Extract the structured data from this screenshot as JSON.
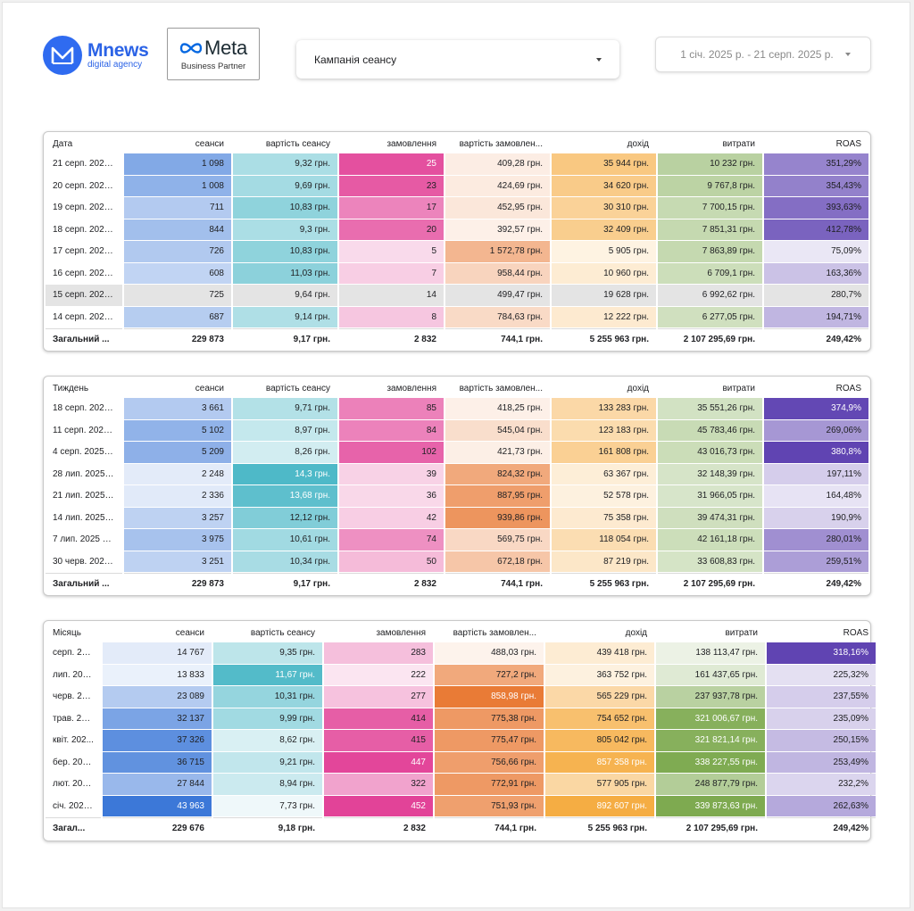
{
  "logo": {
    "name": "Mnews",
    "sub": "digital agency"
  },
  "partner": {
    "name": "Meta",
    "sub": "Business Partner"
  },
  "filters": {
    "campaign_label": "Кампанія сеансу",
    "date_range": "1 січ. 2025 р. - 21 серп. 2025 р."
  },
  "colors": {
    "sessions": "#3c78d8",
    "cost_session": "#45b5c5",
    "orders": "#e0338f",
    "cost_order": "#e8742c",
    "revenue": "#f5a93a",
    "spend": "#7aa84b",
    "roas": "#5b3fb0"
  },
  "columns": [
    "сеанси",
    "вартість сеансу",
    "замовлення",
    "вартість замовлен...",
    "дохід",
    "витрати",
    "ROAS"
  ],
  "tables": [
    {
      "dim_label": "Дата",
      "col_widths": [
        86,
        120,
        117,
        117,
        117,
        117,
        117,
        117
      ],
      "highlight_row": 6,
      "rows": [
        {
          "label": "21 серп. 2025 ...",
          "values": [
            "1 098",
            "9,32 грн.",
            "25",
            "409,28 грн.",
            "35 944 грн.",
            "10 232 грн.",
            "351,29%"
          ],
          "int": [
            0.62,
            0.42,
            0.85,
            0.08,
            0.62,
            0.5,
            0.62
          ]
        },
        {
          "label": "20 серп. 2025 ...",
          "values": [
            "1 008",
            "9,69 грн.",
            "23",
            "424,69 грн.",
            "34 620 грн.",
            "9 767,8 грн.",
            "354,43%"
          ],
          "int": [
            0.55,
            0.46,
            0.8,
            0.1,
            0.58,
            0.48,
            0.64
          ]
        },
        {
          "label": "19 серп. 2025 ...",
          "values": [
            "711",
            "10,83 грн.",
            "17",
            "452,95 грн.",
            "30 310 грн.",
            "7 700,15 грн.",
            "393,63%"
          ],
          "int": [
            0.36,
            0.58,
            0.58,
            0.13,
            0.5,
            0.4,
            0.74
          ]
        },
        {
          "label": "18 серп. 2025 ...",
          "values": [
            "844",
            "9,3 грн.",
            "20",
            "392,57 грн.",
            "32 409 грн.",
            "7 851,31 грн.",
            "412,78%"
          ],
          "int": [
            0.45,
            0.42,
            0.7,
            0.06,
            0.55,
            0.41,
            0.8
          ]
        },
        {
          "label": "17 серп. 2025 ...",
          "values": [
            "726",
            "10,83 грн.",
            "5",
            "1 572,78 грн.",
            "5 905 грн.",
            "7 863,89 грн.",
            "75,09%"
          ],
          "int": [
            0.37,
            0.58,
            0.14,
            0.5,
            0.1,
            0.41,
            0.08
          ]
        },
        {
          "label": "16 серп. 2025 ...",
          "values": [
            "608",
            "11,03 грн.",
            "7",
            "958,44 грн.",
            "10 960 грн.",
            "6 709,1 грн.",
            "163,36%"
          ],
          "int": [
            0.28,
            0.6,
            0.2,
            0.27,
            0.18,
            0.35,
            0.28
          ]
        },
        {
          "label": "15 серп. 2025 ...",
          "values": [
            "725",
            "9,64 грн.",
            "14",
            "499,47 грн.",
            "19 628 грн.",
            "6 992,62 грн.",
            "280,7%"
          ],
          "int": [
            0.37,
            0.46,
            0.45,
            0.15,
            0.33,
            0.36,
            0.5
          ]
        },
        {
          "label": "14 серп. 2025 ...",
          "values": [
            "687",
            "9,14 грн.",
            "8",
            "784,63 грн.",
            "12 222 грн.",
            "6 277,05 грн.",
            "194,71%"
          ],
          "int": [
            0.34,
            0.4,
            0.24,
            0.23,
            0.2,
            0.32,
            0.35
          ]
        }
      ],
      "total": {
        "label": "Загальний ...",
        "values": [
          "229 873",
          "9,17 грн.",
          "2 832",
          "744,1 грн.",
          "5 255 963 грн.",
          "2 107 295,69 грн.",
          "249,42%"
        ]
      }
    },
    {
      "dim_label": "Тиждень",
      "col_widths": [
        86,
        120,
        117,
        117,
        117,
        117,
        117,
        117
      ],
      "highlight_row": -1,
      "rows": [
        {
          "label": "18 серп. 2025 ...",
          "values": [
            "3 661",
            "9,71 грн.",
            "85",
            "418,25 грн.",
            "133 283 грн.",
            "35 551,26 грн.",
            "374,9%"
          ],
          "int": [
            0.36,
            0.38,
            0.6,
            0.06,
            0.42,
            0.3,
            0.95
          ]
        },
        {
          "label": "11 серп. 2025 ...",
          "values": [
            "5 102",
            "8,97 грн.",
            "84",
            "545,04 грн.",
            "123 183 грн.",
            "45 783,46 грн.",
            "269,06%"
          ],
          "int": [
            0.54,
            0.28,
            0.59,
            0.2,
            0.38,
            0.38,
            0.52
          ]
        },
        {
          "label": "4 серп. 2025 р...",
          "values": [
            "5 209",
            "8,26 грн.",
            "102",
            "421,73 грн.",
            "161 808 грн.",
            "43 016,73 грн.",
            "380,8%"
          ],
          "int": [
            0.56,
            0.2,
            0.75,
            0.07,
            0.52,
            0.36,
            0.97
          ]
        },
        {
          "label": "28 лип. 2025 р...",
          "values": [
            "2 248",
            "14,3 грн.",
            "39",
            "824,32 грн.",
            "63 367 грн.",
            "32 148,39 грн.",
            "197,11%"
          ],
          "int": [
            0.1,
            0.95,
            0.18,
            0.6,
            0.16,
            0.27,
            0.22
          ]
        },
        {
          "label": "21 лип. 2025 р...",
          "values": [
            "2 336",
            "13,68 грн.",
            "36",
            "887,95 грн.",
            "52 578 грн.",
            "31 966,05 грн.",
            "164,48%"
          ],
          "int": [
            0.11,
            0.86,
            0.15,
            0.68,
            0.12,
            0.26,
            0.1
          ]
        },
        {
          "label": "14 лип. 2025 р...",
          "values": [
            "3 257",
            "12,12 грн.",
            "42",
            "939,86 грн.",
            "75 358 грн.",
            "39 474,31 грн.",
            "190,9%"
          ],
          "int": [
            0.3,
            0.66,
            0.2,
            0.75,
            0.2,
            0.33,
            0.2
          ]
        },
        {
          "label": "7 лип. 2025 р. ...",
          "values": [
            "3 975",
            "10,61 грн.",
            "74",
            "569,75 грн.",
            "118 054 грн.",
            "42 161,18 грн.",
            "280,01%"
          ],
          "int": [
            0.42,
            0.48,
            0.52,
            0.24,
            0.36,
            0.35,
            0.56
          ]
        },
        {
          "label": "30 черв. 2025 ...",
          "values": [
            "3 251",
            "10,34 грн.",
            "50",
            "672,18 грн.",
            "87 219 грн.",
            "33 608,83 грн.",
            "259,51%"
          ],
          "int": [
            0.3,
            0.44,
            0.3,
            0.38,
            0.24,
            0.28,
            0.48
          ]
        }
      ],
      "total": {
        "label": "Загальний ...",
        "values": [
          "229 873",
          "9,17 грн.",
          "2 832",
          "744,1 грн.",
          "5 255 963 грн.",
          "2 107 295,69 грн.",
          "249,42%"
        ]
      }
    },
    {
      "dim_label": "Місяць",
      "col_widths": [
        62,
        122,
        122,
        122,
        122,
        122,
        122,
        122
      ],
      "highlight_row": -1,
      "rows": [
        {
          "label": "серп. 20...",
          "values": [
            "14 767",
            "9,35 грн.",
            "283",
            "488,03 грн.",
            "439 418 грн.",
            "138 113,47 грн.",
            "318,16%"
          ],
          "int": [
            0.1,
            0.32,
            0.28,
            0.04,
            0.18,
            0.1,
            0.97
          ]
        },
        {
          "label": "лип. 202...",
          "values": [
            "13 833",
            "11,67 грн.",
            "222",
            "727,2 грн.",
            "363 752 грн.",
            "161 437,65 грн.",
            "225,32%"
          ],
          "int": [
            0.06,
            0.92,
            0.08,
            0.6,
            0.12,
            0.2,
            0.12
          ]
        },
        {
          "label": "черв. 20...",
          "values": [
            "23 089",
            "10,31 грн.",
            "277",
            "858,98 грн.",
            "565 229 грн.",
            "237 937,78 грн.",
            "237,55%"
          ],
          "int": [
            0.35,
            0.55,
            0.26,
            0.95,
            0.42,
            0.5,
            0.22
          ]
        },
        {
          "label": "трав. 20...",
          "values": [
            "32 137",
            "9,99 грн.",
            "414",
            "775,38 грн.",
            "754 652 грн.",
            "321 006,67 грн.",
            "235,09%"
          ],
          "int": [
            0.66,
            0.48,
            0.78,
            0.72,
            0.72,
            0.9,
            0.2
          ]
        },
        {
          "label": "квіт. 202...",
          "values": [
            "37 326",
            "8,62 грн.",
            "415",
            "775,47 грн.",
            "805 042 грн.",
            "321 821,14 грн.",
            "250,15%"
          ],
          "int": [
            0.82,
            0.16,
            0.78,
            0.72,
            0.8,
            0.9,
            0.32
          ]
        },
        {
          "label": "бер. 202...",
          "values": [
            "36 715",
            "9,21 грн.",
            "447",
            "756,66 грн.",
            "857 358 грн.",
            "338 227,55 грн.",
            "253,49%"
          ],
          "int": [
            0.8,
            0.3,
            0.9,
            0.68,
            0.88,
            0.96,
            0.35
          ]
        },
        {
          "label": "лют. 202...",
          "values": [
            "27 844",
            "8,94 грн.",
            "322",
            "772,91 грн.",
            "577 905 грн.",
            "248 877,79 грн.",
            "232,2%"
          ],
          "int": [
            0.5,
            0.24,
            0.42,
            0.72,
            0.44,
            0.55,
            0.18
          ]
        },
        {
          "label": "січ. 2025 ...",
          "values": [
            "43 963",
            "7,73 грн.",
            "452",
            "751,93 грн.",
            "892 607 грн.",
            "339 873,63 грн.",
            "262,63%"
          ],
          "int": [
            1.0,
            0.04,
            0.92,
            0.67,
            0.95,
            0.97,
            0.42
          ]
        }
      ],
      "total": {
        "label": "Загал...",
        "values": [
          "229 676",
          "9,18 грн.",
          "2 832",
          "744,1 грн.",
          "5 255 963 грн.",
          "2 107 295,69 грн.",
          "249,42%"
        ]
      }
    }
  ]
}
